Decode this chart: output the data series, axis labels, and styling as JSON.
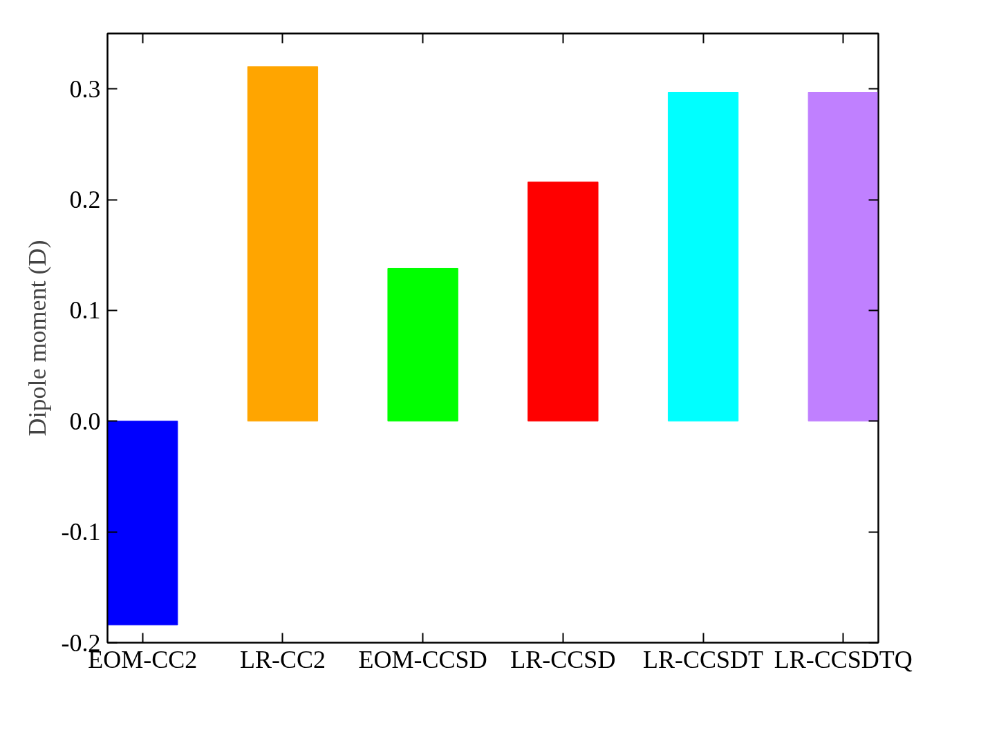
{
  "chart_data": {
    "type": "bar",
    "ylabel": "Dipole moment (D)",
    "categories": [
      "EOM-CC2",
      "LR-CC2",
      "EOM-CCSD",
      "LR-CCSD",
      "LR-CCSDT",
      "LR-CCSDTQ"
    ],
    "values": [
      -0.184,
      0.32,
      0.138,
      0.216,
      0.297,
      0.297
    ],
    "colors": [
      "#0000ff",
      "#ffa500",
      "#00ff00",
      "#ff0000",
      "#00ffff",
      "#c080ff"
    ],
    "ylim": [
      -0.2,
      0.35
    ],
    "yticks": [
      -0.2,
      -0.1,
      {
        "value": 0,
        "label": "0.0"
      },
      0.1,
      0.2,
      0.3
    ],
    "grid": false
  }
}
